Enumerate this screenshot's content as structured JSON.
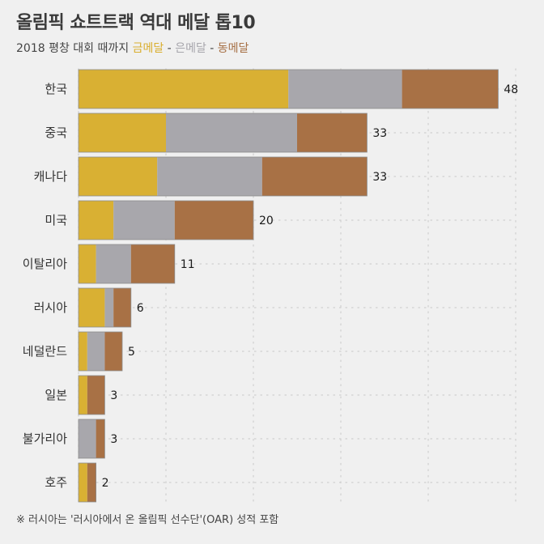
{
  "title": "올림픽 쇼트트랙 역대 메달 톱10",
  "subtitle": {
    "prefix": "2018 평창 대회 때까지 ",
    "gold": "금메달",
    "sep1": " - ",
    "silver": "은메달",
    "sep2": " - ",
    "bronze": "동메달"
  },
  "footnote": "※ 러시아는 '러시아에서 온 올림픽 선수단'(OAR) 성적 포함",
  "colors": {
    "gold": "#d9b033",
    "silver": "#a8a7ac",
    "bronze": "#a87145",
    "grid": "#cfcfcf",
    "background": "#f0f0f0"
  },
  "chart_data": {
    "type": "bar",
    "orientation": "horizontal",
    "stacked": true,
    "categories": [
      "한국",
      "중국",
      "캐나다",
      "미국",
      "이탈리아",
      "러시아",
      "네덜란드",
      "일본",
      "불가리아",
      "호주"
    ],
    "series": [
      {
        "name": "금메달",
        "color": "#d9b033",
        "values": [
          24,
          10,
          9,
          4,
          2,
          3,
          1,
          1,
          0,
          1
        ]
      },
      {
        "name": "은메달",
        "color": "#a8a7ac",
        "values": [
          13,
          15,
          12,
          7,
          4,
          1,
          2,
          0,
          2,
          0
        ]
      },
      {
        "name": "동메달",
        "color": "#a87145",
        "values": [
          11,
          8,
          12,
          9,
          5,
          2,
          2,
          2,
          1,
          1
        ]
      }
    ],
    "totals": [
      48,
      33,
      33,
      20,
      11,
      6,
      5,
      3,
      3,
      2
    ],
    "xlim": [
      0,
      50
    ],
    "grid": true,
    "title": "올림픽 쇼트트랙 역대 메달 톱10",
    "xlabel": "",
    "ylabel": ""
  }
}
